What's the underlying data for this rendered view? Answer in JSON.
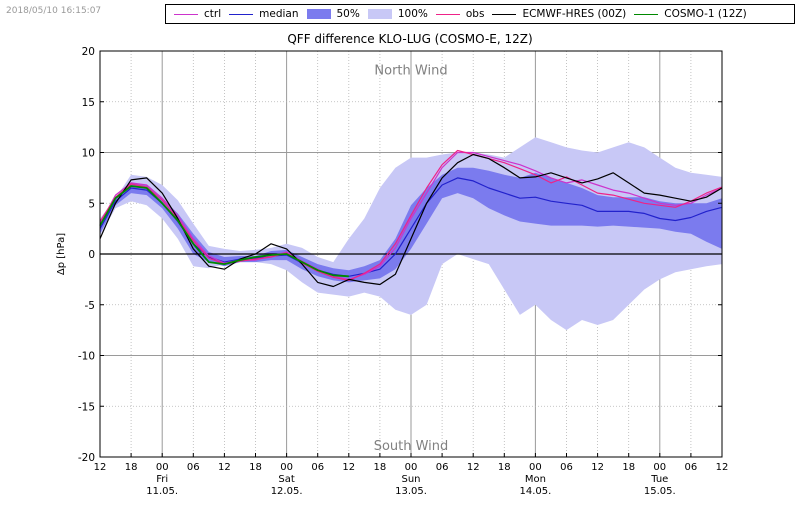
{
  "timestamp": "2018/05/10 16:15:07",
  "legend": [
    {
      "label": "ctrl",
      "kind": "line",
      "color": "#cc33cc"
    },
    {
      "label": "median",
      "kind": "line",
      "color": "#2222cc"
    },
    {
      "label": "50%",
      "kind": "box",
      "color": "#7b7bee"
    },
    {
      "label": "100%",
      "kind": "box",
      "color": "#c8c8f6"
    },
    {
      "label": "obs",
      "kind": "line",
      "color": "#ee2288"
    },
    {
      "label": "ECMWF-HRES (00Z)",
      "kind": "line",
      "color": "#000000"
    },
    {
      "label": "COSMO-1 (12Z)",
      "kind": "line",
      "color": "#008800"
    }
  ],
  "chart_data": {
    "type": "line",
    "title": "QFF difference KLO-LUG (COSMO-E, 12Z)",
    "ylabel": "Δp [hPa]",
    "xlabel": "",
    "ylim": [
      -20,
      20
    ],
    "xlim": [
      0,
      120
    ],
    "x_unit": "hours after 12 UTC 10.05.",
    "yticks": [
      -20,
      -15,
      -10,
      -5,
      0,
      5,
      10,
      15,
      20
    ],
    "xtick_hours": [
      0,
      6,
      12,
      18,
      24,
      30,
      36,
      42,
      48,
      54,
      60,
      66,
      72,
      78,
      84,
      90,
      96,
      102,
      108,
      114,
      120
    ],
    "xtick_labels": [
      "12",
      "18",
      "00",
      "06",
      "12",
      "18",
      "00",
      "06",
      "12",
      "18",
      "00",
      "06",
      "12",
      "18",
      "00",
      "06",
      "12",
      "18",
      "00",
      "06",
      "12"
    ],
    "day_labels": [
      {
        "hour": 12,
        "day": "Fri",
        "date": "11.05."
      },
      {
        "hour": 36,
        "day": "Sat",
        "date": "12.05."
      },
      {
        "hour": 60,
        "day": "Sun",
        "date": "13.05."
      },
      {
        "hour": 84,
        "day": "Mon",
        "date": "14.05."
      },
      {
        "hour": 108,
        "day": "Tue",
        "date": "15.05."
      }
    ],
    "annotations": [
      {
        "text": "North Wind",
        "hour": 60,
        "value": 18.2
      },
      {
        "text": "South Wind",
        "hour": 60,
        "value": -18.8
      }
    ],
    "grid": true,
    "band_100": {
      "x": [
        0,
        3,
        6,
        9,
        12,
        15,
        18,
        21,
        24,
        27,
        30,
        33,
        36,
        39,
        42,
        45,
        48,
        51,
        54,
        57,
        60,
        63,
        66,
        69,
        72,
        75,
        78,
        81,
        84,
        87,
        90,
        93,
        96,
        99,
        102,
        105,
        108,
        111,
        114,
        117,
        120
      ],
      "upper": [
        3.5,
        5.5,
        7.8,
        7.6,
        6.8,
        5.3,
        3.0,
        0.8,
        0.5,
        0.3,
        0.4,
        0.6,
        1.0,
        0.6,
        -0.3,
        -0.8,
        1.5,
        3.5,
        6.5,
        8.5,
        9.5,
        9.5,
        9.8,
        10.0,
        10.0,
        9.8,
        9.5,
        10.5,
        11.5,
        11.0,
        10.5,
        10.2,
        10.0,
        10.5,
        11.0,
        10.5,
        9.5,
        8.5,
        8.0,
        7.8,
        7.6
      ],
      "lower": [
        1.8,
        4.5,
        5.2,
        4.8,
        3.5,
        1.5,
        -1.2,
        -1.4,
        -1.0,
        -0.8,
        -0.8,
        -1.0,
        -1.6,
        -2.8,
        -3.8,
        -4.0,
        -4.2,
        -3.8,
        -4.2,
        -5.5,
        -6.0,
        -5.0,
        -1.0,
        0.0,
        -0.5,
        -1.0,
        -3.5,
        -6.0,
        -5.0,
        -6.5,
        -7.5,
        -6.5,
        -7.0,
        -6.5,
        -5.0,
        -3.5,
        -2.5,
        -1.8,
        -1.5,
        -1.2,
        -1.0
      ]
    },
    "band_50": {
      "x": [
        0,
        3,
        6,
        9,
        12,
        15,
        18,
        21,
        24,
        27,
        30,
        33,
        36,
        39,
        42,
        45,
        48,
        51,
        54,
        57,
        60,
        63,
        66,
        69,
        72,
        75,
        78,
        81,
        84,
        87,
        90,
        93,
        96,
        99,
        102,
        105,
        108,
        111,
        114,
        117,
        120
      ],
      "upper": [
        3.0,
        5.5,
        7.0,
        6.8,
        5.5,
        4.0,
        2.0,
        0.2,
        -0.3,
        -0.2,
        -0.2,
        0.3,
        0.4,
        -0.3,
        -1.0,
        -1.4,
        -1.6,
        -1.2,
        -0.6,
        1.5,
        4.8,
        6.5,
        7.8,
        8.5,
        8.5,
        8.2,
        7.8,
        7.5,
        8.0,
        7.5,
        7.0,
        6.5,
        5.8,
        5.6,
        5.6,
        5.6,
        5.2,
        5.0,
        5.0,
        5.0,
        5.5
      ],
      "lower": [
        2.0,
        4.8,
        6.0,
        5.8,
        4.5,
        2.5,
        0.0,
        -0.8,
        -1.2,
        -0.8,
        -0.8,
        -0.6,
        -0.6,
        -1.5,
        -2.2,
        -2.6,
        -2.8,
        -2.6,
        -2.4,
        -1.5,
        0.5,
        3.0,
        5.5,
        6.0,
        5.5,
        4.5,
        3.8,
        3.2,
        3.0,
        2.8,
        2.8,
        2.8,
        2.7,
        2.8,
        2.7,
        2.6,
        2.5,
        2.2,
        2.0,
        1.2,
        0.5
      ]
    },
    "series": [
      {
        "name": "median",
        "color": "#2222cc",
        "x": [
          0,
          3,
          6,
          9,
          12,
          15,
          18,
          21,
          24,
          27,
          30,
          33,
          36,
          39,
          42,
          45,
          48,
          51,
          54,
          57,
          60,
          63,
          66,
          69,
          72,
          75,
          78,
          81,
          84,
          87,
          90,
          93,
          96,
          99,
          102,
          105,
          108,
          111,
          114,
          117,
          120
        ],
        "y": [
          2.5,
          5.2,
          6.5,
          6.3,
          5.0,
          3.2,
          1.0,
          -0.3,
          -0.8,
          -0.5,
          -0.4,
          -0.2,
          -0.1,
          -0.9,
          -1.6,
          -2.0,
          -2.2,
          -1.9,
          -1.5,
          0.0,
          2.5,
          5.0,
          6.8,
          7.5,
          7.2,
          6.5,
          6.0,
          5.5,
          5.6,
          5.2,
          5.0,
          4.8,
          4.2,
          4.2,
          4.2,
          4.0,
          3.5,
          3.3,
          3.6,
          4.2,
          4.6
        ]
      },
      {
        "name": "ctrl",
        "color": "#cc33cc",
        "x": [
          0,
          3,
          6,
          9,
          12,
          15,
          18,
          21,
          24,
          27,
          30,
          33,
          36,
          39,
          42,
          45,
          48,
          51,
          54,
          57,
          60,
          63,
          66,
          69,
          72,
          75,
          78,
          81,
          84,
          87,
          90,
          93,
          96,
          99,
          102,
          105,
          108,
          111,
          114,
          117,
          120
        ],
        "y": [
          3.0,
          5.8,
          7.0,
          6.8,
          5.5,
          3.8,
          1.5,
          -0.2,
          -0.9,
          -0.6,
          -0.6,
          -0.2,
          0.2,
          -0.7,
          -1.5,
          -2.2,
          -2.5,
          -2.0,
          -1.2,
          0.6,
          3.5,
          6.0,
          8.5,
          10.0,
          10.0,
          9.6,
          9.2,
          8.8,
          8.2,
          7.5,
          7.0,
          7.3,
          6.8,
          6.3,
          6.0,
          5.5,
          5.0,
          4.8,
          5.0,
          5.8,
          6.5
        ]
      },
      {
        "name": "obs",
        "color": "#ee2288",
        "x": [
          0,
          3,
          6,
          9,
          12,
          15,
          18,
          21,
          24,
          27,
          30,
          33,
          36,
          39,
          42,
          45,
          48,
          51,
          54,
          57,
          60,
          63,
          66,
          69,
          72,
          75,
          78,
          81,
          84,
          87,
          90,
          93,
          96,
          99,
          102,
          105,
          108,
          111,
          114,
          117,
          120
        ],
        "y": [
          3.2,
          5.6,
          6.9,
          6.6,
          5.3,
          3.5,
          1.3,
          -0.4,
          -1.0,
          -0.7,
          -0.5,
          -0.3,
          0.1,
          -0.9,
          -1.7,
          -2.3,
          -2.6,
          -1.9,
          -1.0,
          1.0,
          3.8,
          6.5,
          8.8,
          10.2,
          9.8,
          9.4,
          9.0,
          8.4,
          7.8,
          7.0,
          7.6,
          6.8,
          6.0,
          5.8,
          5.4,
          5.0,
          4.8,
          4.6,
          5.2,
          6.0,
          6.6
        ]
      },
      {
        "name": "ECMWF-HRES (00Z)",
        "color": "#000000",
        "x": [
          0,
          3,
          6,
          9,
          12,
          15,
          18,
          21,
          24,
          27,
          30,
          33,
          36,
          39,
          42,
          45,
          48,
          51,
          54,
          57,
          60,
          63,
          66,
          69,
          72,
          75,
          78,
          81,
          84,
          87,
          90,
          93,
          96,
          99,
          102,
          105,
          108,
          111,
          114,
          117,
          120
        ],
        "y": [
          1.5,
          5.0,
          7.3,
          7.5,
          6.0,
          3.5,
          0.5,
          -1.2,
          -1.5,
          -0.5,
          0.0,
          1.0,
          0.5,
          -1.0,
          -2.8,
          -3.2,
          -2.5,
          -2.8,
          -3.0,
          -2.0,
          1.5,
          5.0,
          7.5,
          9.0,
          9.8,
          9.4,
          8.5,
          7.5,
          7.6,
          8.0,
          7.5,
          7.0,
          7.4,
          8.0,
          7.0,
          6.0,
          5.8,
          5.5,
          5.2,
          5.6,
          6.5
        ]
      },
      {
        "name": "COSMO-1 (12Z)",
        "color": "#008800",
        "x": [
          0,
          3,
          6,
          9,
          12,
          15,
          18,
          21,
          24,
          27,
          30,
          33,
          36,
          39,
          42,
          45,
          48
        ],
        "y": [
          2.8,
          5.5,
          6.7,
          6.5,
          5.0,
          3.3,
          1.0,
          -0.8,
          -1.0,
          -0.6,
          -0.3,
          -0.1,
          0.0,
          -0.8,
          -1.6,
          -2.1,
          -2.2
        ]
      }
    ]
  }
}
